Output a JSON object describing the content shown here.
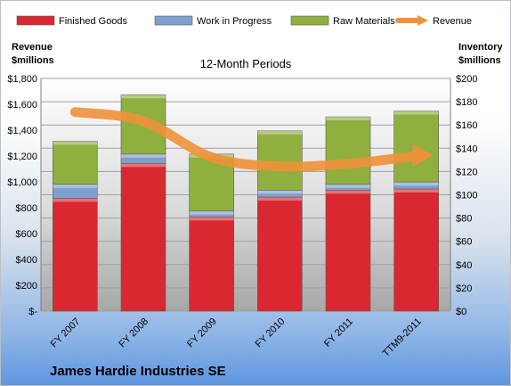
{
  "chart_data": {
    "type": "bar",
    "title": "12-Month Periods",
    "company": "James Hardie Industries SE",
    "left_axis_label": [
      "Revenue",
      "$millions"
    ],
    "right_axis_label": [
      "Inventory",
      "$millions"
    ],
    "categories": [
      "FY 2007",
      "FY 2008",
      "FY 2009",
      "FY 2010",
      "FY 2011",
      "TTM9-2011"
    ],
    "stacked": true,
    "series": [
      {
        "name": "Finished Goods",
        "axis": "right",
        "color": "#d9282f",
        "values": [
          97,
          127,
          81,
          98,
          104,
          105
        ]
      },
      {
        "name": "Work in Progress",
        "axis": "right",
        "color": "#7f9fcc",
        "values": [
          12,
          8,
          5,
          6,
          5,
          6
        ]
      },
      {
        "name": "Raw Materials",
        "axis": "right",
        "color": "#8fb03f",
        "values": [
          37,
          51,
          49,
          51,
          58,
          61
        ]
      },
      {
        "name": "Revenue",
        "type": "line",
        "axis": "left",
        "color": "#f0913a",
        "values": [
          1540,
          1470,
          1190,
          1120,
          1140,
          1200
        ]
      }
    ],
    "left_ylim": [
      0,
      1800
    ],
    "left_ticks": [
      "$-",
      "$200",
      "$400",
      "$600",
      "$800",
      "$1,000",
      "$1,200",
      "$1,400",
      "$1,600",
      "$1,800"
    ],
    "right_ylim": [
      0,
      200
    ],
    "right_ticks": [
      "$0",
      "$20",
      "$40",
      "$60",
      "$80",
      "$100",
      "$120",
      "$140",
      "$160",
      "$180",
      "$200"
    ],
    "grid": true,
    "legend_position": "top"
  }
}
